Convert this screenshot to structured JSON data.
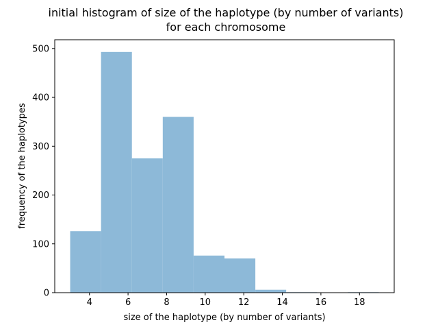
{
  "chart_data": {
    "type": "bar",
    "title": [
      "initial histogram of size of the haplotype (by number of variants)",
      "for each chromosome"
    ],
    "xlabel": "size of the haplotype (by number of variants)",
    "ylabel": "frequency of the haplotypes",
    "xlim": [
      2.2,
      19.8
    ],
    "ylim": [
      0,
      518
    ],
    "xticks": [
      4,
      6,
      8,
      10,
      12,
      14,
      16,
      18
    ],
    "yticks": [
      0,
      100,
      200,
      300,
      400,
      500
    ],
    "bin_edges": [
      3.0,
      4.6,
      6.2,
      7.8,
      9.4,
      11.0,
      12.6,
      14.2,
      15.8,
      17.4,
      19.0
    ],
    "values": [
      126,
      493,
      275,
      360,
      76,
      70,
      6,
      1,
      0,
      1
    ],
    "bar_color": "#8db9d8",
    "grid": false
  }
}
